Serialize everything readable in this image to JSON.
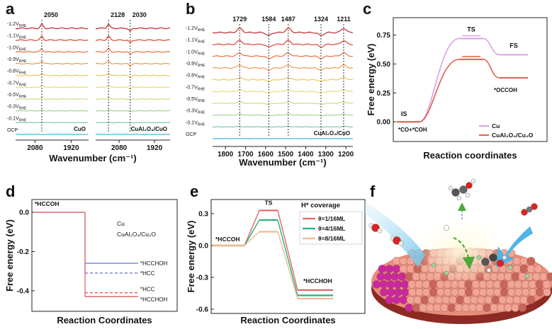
{
  "chart_data": [
    {
      "type": "spectra",
      "panel": "a",
      "xlabel": "Wavenumber (cm⁻¹)",
      "potentials": [
        "-1.2",
        "-1.1",
        "-1.0",
        "-0.9",
        "-0.8",
        "-0.7",
        "-0.5",
        "-0.3",
        "-0.1"
      ],
      "potential_unit": "V",
      "potential_sub": "RHE",
      "ocp": "OCP",
      "colors": [
        "#c0282d",
        "#d8432f",
        "#e86d3a",
        "#f09a4a",
        "#f4c45a",
        "#e4dc6e",
        "#c6de80",
        "#a2d494",
        "#7cc6b6",
        "#46b6dc"
      ],
      "subplots": [
        {
          "xlim": [
            2166,
            1843
          ],
          "xticks": [
            2080,
            1920
          ],
          "peaks": [
            2050
          ],
          "sample": "CuO"
        },
        {
          "xlim": [
            2186,
            1850
          ],
          "xticks": [
            2080,
            1920
          ],
          "peaks": [
            2128,
            2030
          ],
          "sample": "CuAl₂O₄/CuO"
        }
      ]
    },
    {
      "type": "spectra",
      "panel": "b",
      "xlabel": "Wavenumber (cm⁻¹)",
      "potentials": [
        "-1.2",
        "-1.1",
        "-1.0",
        "-0.9",
        "-0.8",
        "-0.7",
        "-0.5",
        "-0.3",
        "-0.1"
      ],
      "potential_unit": "V",
      "potential_sub": "RHE",
      "ocp": "OCP",
      "colors": [
        "#c0282d",
        "#d8432f",
        "#e86d3a",
        "#f09a4a",
        "#f4c45a",
        "#e4dc6e",
        "#c6de80",
        "#a2d494",
        "#7cc6b6",
        "#46b6dc"
      ],
      "subplots": [
        {
          "xlim": [
            1864,
            1165
          ],
          "xticks": [
            1800,
            1700,
            1600,
            1500,
            1400,
            1300,
            1200
          ],
          "peaks": [
            1729,
            1584,
            1487,
            1324,
            1211
          ],
          "sample": "CuAl₂O₄/CuO"
        }
      ]
    },
    {
      "type": "energy",
      "panel": "c",
      "xlabel": "Reaction coordinates",
      "ylabel": "Free energy (eV)",
      "ylim": [
        -0.17,
        0.9
      ],
      "yticks": [
        {
          "value": 0,
          "label": "0.00"
        },
        0.25,
        {
          "value": 0.5,
          "label": "0.50"
        },
        0.75
      ],
      "states": [
        "IS",
        "TS",
        "FS"
      ],
      "state_names": [
        "*CO+*COH",
        "*OCCOH"
      ],
      "series": [
        {
          "name": "Cu",
          "color": "#d9a2e2",
          "values": [
            0,
            0.72,
            0.58
          ]
        },
        {
          "name": "CuAl₂O₄/Cu₂O",
          "color": "#e06050",
          "values": [
            0,
            0.54,
            0.38
          ]
        }
      ]
    },
    {
      "type": "levels",
      "panel": "d",
      "xlabel": "Reaction Coordinates",
      "ylabel": "Free energy (eV)",
      "ylim": [
        -0.505,
        0.065
      ],
      "yticks": [
        {
          "value": 0,
          "label": "0.0"
        },
        -0.2,
        -0.4
      ],
      "start": {
        "label": "*HCCOH",
        "value": 0
      },
      "series": [
        {
          "name": "Cu",
          "color": "#6f7fd6",
          "values": [
            -0.26,
            -0.31
          ],
          "labels": [
            "*HCCHOH",
            "*HCC"
          ],
          "dashed": [
            false,
            true
          ]
        },
        {
          "name": "CuAl₂O₄/Cu₂O",
          "color": "#e05a5a",
          "values": [
            -0.41,
            -0.43
          ],
          "labels": [
            "*HCC",
            "*HCCHOH"
          ],
          "dashed": [
            true,
            false
          ]
        }
      ]
    },
    {
      "type": "energy",
      "panel": "e",
      "xlabel": "Reaction Coordinates",
      "ylabel": "Free energy (eV)",
      "ylim": [
        -0.64,
        0.433
      ],
      "yticks": [
        0.3,
        {
          "value": 0,
          "label": "0.0"
        },
        -0.3,
        -0.6
      ],
      "states": [
        "*HCCOH",
        "TS",
        "*HCCHOH"
      ],
      "legend_title": "H* coverage",
      "series": [
        {
          "name": "θ=1/16ML",
          "color": "#e26565",
          "values": [
            0,
            0.33,
            -0.42
          ]
        },
        {
          "name": "θ=4/16ML",
          "color": "#22b07a",
          "values": [
            0,
            0.24,
            -0.47
          ]
        },
        {
          "name": "θ=8/16ML",
          "color": "#f2b98e",
          "values": [
            0,
            0.13,
            -0.5
          ]
        }
      ]
    },
    {
      "type": "illustration",
      "panel": "f"
    }
  ]
}
